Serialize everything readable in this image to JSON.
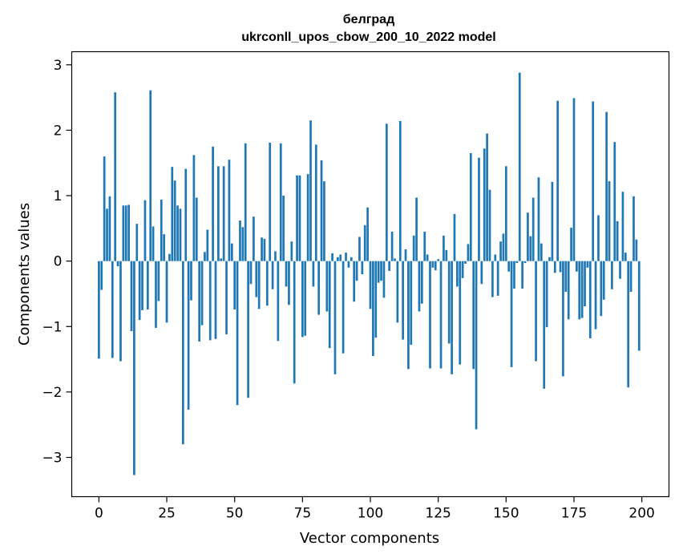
{
  "chart_data": {
    "type": "bar",
    "title": "белград",
    "subtitle": "ukrconll_upos_cbow_200_10_2022 model",
    "xlabel": "Vector components",
    "ylabel": "Components values",
    "xlim": [
      -10,
      210
    ],
    "ylim": [
      -3.6,
      3.2
    ],
    "xticks": [
      0,
      25,
      50,
      75,
      100,
      125,
      150,
      175,
      200
    ],
    "yticks": [
      -3,
      -2,
      -1,
      0,
      1,
      2,
      3
    ],
    "xtick_labels": [
      "0",
      "25",
      "50",
      "75",
      "100",
      "125",
      "150",
      "175",
      "200"
    ],
    "ytick_labels": [
      "−3",
      "−2",
      "−1",
      "0",
      "1",
      "2",
      "3"
    ],
    "grid": false,
    "bar_color": "#1f77b4",
    "x": [
      0,
      1,
      2,
      3,
      4,
      5,
      6,
      7,
      8,
      9,
      10,
      11,
      12,
      13,
      14,
      15,
      16,
      17,
      18,
      19,
      20,
      21,
      22,
      23,
      24,
      25,
      26,
      27,
      28,
      29,
      30,
      31,
      32,
      33,
      34,
      35,
      36,
      37,
      38,
      39,
      40,
      41,
      42,
      43,
      44,
      45,
      46,
      47,
      48,
      49,
      50,
      51,
      52,
      53,
      54,
      55,
      56,
      57,
      58,
      59,
      60,
      61,
      62,
      63,
      64,
      65,
      66,
      67,
      68,
      69,
      70,
      71,
      72,
      73,
      74,
      75,
      76,
      77,
      78,
      79,
      80,
      81,
      82,
      83,
      84,
      85,
      86,
      87,
      88,
      89,
      90,
      91,
      92,
      93,
      94,
      95,
      96,
      97,
      98,
      99,
      100,
      101,
      102,
      103,
      104,
      105,
      106,
      107,
      108,
      109,
      110,
      111,
      112,
      113,
      114,
      115,
      116,
      117,
      118,
      119,
      120,
      121,
      122,
      123,
      124,
      125,
      126,
      127,
      128,
      129,
      130,
      131,
      132,
      133,
      134,
      135,
      136,
      137,
      138,
      139,
      140,
      141,
      142,
      143,
      144,
      145,
      146,
      147,
      148,
      149,
      150,
      151,
      152,
      153,
      154,
      155,
      156,
      157,
      158,
      159,
      160,
      161,
      162,
      163,
      164,
      165,
      166,
      167,
      168,
      169,
      170,
      171,
      172,
      173,
      174,
      175,
      176,
      177,
      178,
      179,
      180,
      181,
      182,
      183,
      184,
      185,
      186,
      187,
      188,
      189,
      190,
      191,
      192,
      193,
      194,
      195,
      196,
      197,
      198,
      199
    ],
    "values": [
      -1.49,
      -0.44,
      1.6,
      0.8,
      0.99,
      -1.48,
      2.58,
      -0.08,
      -1.53,
      0.85,
      0.85,
      0.86,
      -1.07,
      -3.27,
      0.57,
      -0.9,
      -0.75,
      0.93,
      -0.74,
      2.61,
      0.53,
      -1.02,
      -0.61,
      0.94,
      0.41,
      -0.94,
      0.11,
      1.44,
      1.23,
      0.85,
      0.8,
      -2.8,
      1.41,
      -2.27,
      -0.6,
      1.62,
      0.97,
      -1.23,
      -0.98,
      0.14,
      0.48,
      -1.21,
      1.75,
      -1.19,
      1.45,
      0.04,
      1.45,
      -1.12,
      1.55,
      0.27,
      -0.74,
      -2.2,
      0.62,
      0.52,
      1.8,
      -2.09,
      -0.35,
      0.68,
      -0.55,
      -0.73,
      0.36,
      0.34,
      -0.68,
      1.81,
      -0.43,
      0.15,
      -1.22,
      1.8,
      1.0,
      -0.39,
      -0.67,
      0.3,
      -1.87,
      1.31,
      1.31,
      -1.16,
      -1.14,
      1.33,
      2.15,
      -0.39,
      1.78,
      -0.82,
      1.54,
      1.22,
      -0.77,
      -1.33,
      0.12,
      -1.73,
      0.06,
      0.1,
      -1.41,
      0.13,
      -0.1,
      0.06,
      -0.62,
      -0.3,
      0.37,
      -0.2,
      0.55,
      0.82,
      -0.73,
      -1.45,
      -1.17,
      -0.33,
      -0.3,
      -0.56,
      2.1,
      -0.15,
      0.45,
      0.04,
      -0.94,
      2.14,
      -1.2,
      0.18,
      -1.65,
      -1.28,
      0.39,
      0.97,
      -0.77,
      -0.65,
      0.45,
      0.1,
      -1.64,
      -0.1,
      -0.14,
      0.03,
      -1.64,
      0.39,
      0.17,
      -1.26,
      -1.73,
      0.72,
      -0.39,
      -1.58,
      -0.26,
      -0.04,
      0.26,
      1.65,
      -1.65,
      -2.57,
      1.58,
      -0.35,
      1.72,
      1.95,
      1.09,
      -0.55,
      0.1,
      -0.53,
      0.3,
      0.42,
      1.45,
      -0.16,
      -1.62,
      -0.42,
      -0.03,
      2.88,
      -0.42,
      -0.03,
      0.74,
      0.38,
      0.97,
      -1.53,
      1.28,
      0.27,
      -1.95,
      -1.01,
      0.06,
      1.21,
      -0.18,
      2.45,
      -0.17,
      -1.76,
      -0.47,
      -0.89,
      0.51,
      2.49,
      -0.16,
      -0.89,
      -0.87,
      -0.69,
      -0.1,
      -1.18,
      2.44,
      -1.04,
      0.7,
      -0.84,
      -0.59,
      2.28,
      1.22,
      -0.43,
      1.82,
      0.61,
      -0.27,
      1.06,
      0.13,
      -1.93,
      -0.47,
      0.99,
      0.33,
      -1.37
    ]
  }
}
